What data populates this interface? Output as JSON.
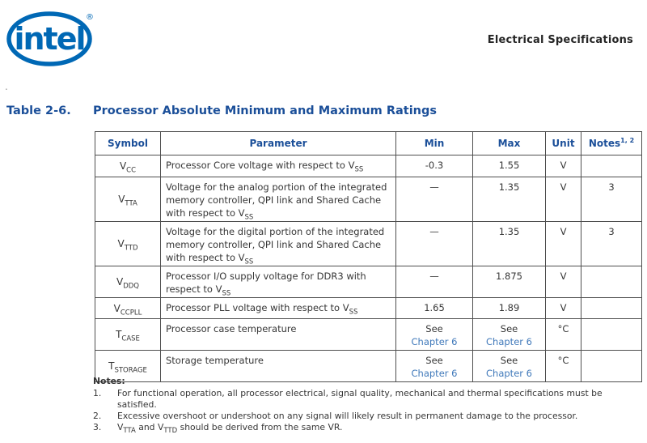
{
  "logo": {
    "text": "intel",
    "registered": "®"
  },
  "header": {
    "right_text": "Electrical Specifications"
  },
  "stray_mark": ".",
  "title": {
    "label": "Table 2-6.",
    "text": "Processor Absolute Minimum and Maximum Ratings"
  },
  "table": {
    "columns": [
      "Symbol",
      "Parameter",
      "Min",
      "Max",
      "Unit",
      "Notes^{1, 2}"
    ],
    "rows": [
      [
        "V_{CC}",
        "Processor Core voltage with respect to V_{SS}",
        "-0.3",
        "1.55",
        "V",
        ""
      ],
      [
        "V_{TTA}",
        "Voltage for the analog portion of the integrated memory controller, QPI link and Shared Cache with respect to V_{SS}",
        "—",
        "1.35",
        "V",
        "3"
      ],
      [
        "V_{TTD}",
        "Voltage for the digital portion of the integrated memory controller, QPI link and Shared Cache with respect to V_{SS}",
        "—",
        "1.35",
        "V",
        "3"
      ],
      [
        "V_{DDQ}",
        "Processor I/O supply voltage for DDR3 with respect to V_{SS}",
        "—",
        "1.875",
        "V",
        ""
      ],
      [
        "V_{CCPLL}",
        "Processor PLL voltage with respect to V_{SS}",
        "1.65",
        "1.89",
        "V",
        ""
      ],
      [
        "T_{CASE}",
        "Processor case temperature",
        "See\n[[Chapter 6]]",
        "See\n[[Chapter 6]]",
        "°C",
        ""
      ],
      [
        "T_{STORAGE}",
        "Storage temperature",
        "See\n[[Chapter 6]]",
        "See\n[[Chapter 6]]",
        "°C",
        ""
      ]
    ]
  },
  "notes": {
    "label": "Notes:",
    "items": [
      {
        "num": "1.",
        "text": "For functional operation, all processor electrical, signal quality, mechanical and thermal specifications must be satisfied."
      },
      {
        "num": "2.",
        "text": "Excessive overshoot or undershoot on any signal will likely result in permanent damage to the processor."
      },
      {
        "num": "3.",
        "text": "V_{TTA} and V_{TTD} should be derived from the same VR."
      }
    ]
  },
  "colors": {
    "intel_blue": "#0068b5",
    "heading_blue": "#1b4f99",
    "link_blue": "#4079ba",
    "body_text": "#363636",
    "border": "#4f4f4f"
  }
}
